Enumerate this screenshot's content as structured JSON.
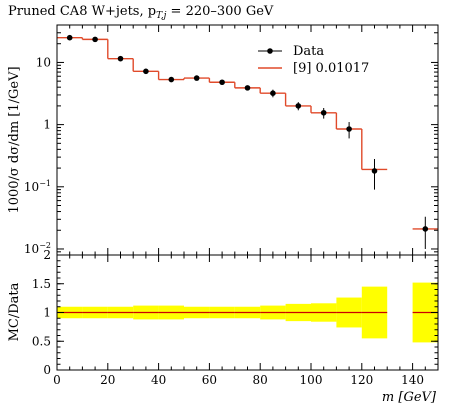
{
  "title": "Pruned CA8 W+jets, p",
  "title_sub": "T,j",
  "title_tail": " = 220–300 GeV",
  "colors": {
    "data": "#000000",
    "mc": "#e04a2a",
    "band": "#ffff00",
    "ratio_line": "#cc0000"
  },
  "chart_data": [
    {
      "type": "line",
      "role": "main",
      "ylabel": "1000/σ dσ/dm [1/GeV]",
      "yscale": "log",
      "ylim": [
        0.008,
        40
      ],
      "xlim": [
        0,
        150
      ],
      "y_ticks": [
        "10^{-2}",
        "10^{-1}",
        "1",
        "10"
      ],
      "bins": [
        [
          0,
          10
        ],
        [
          10,
          20
        ],
        [
          20,
          30
        ],
        [
          30,
          40
        ],
        [
          40,
          50
        ],
        [
          50,
          60
        ],
        [
          60,
          70
        ],
        [
          70,
          80
        ],
        [
          80,
          90
        ],
        [
          90,
          100
        ],
        [
          100,
          110
        ],
        [
          110,
          120
        ],
        [
          120,
          130
        ],
        [
          140,
          150
        ]
      ],
      "series": [
        {
          "name": "Data",
          "style": "points",
          "x": [
            5,
            15,
            25,
            35,
            45,
            55,
            65,
            75,
            85,
            95,
            105,
            115,
            125,
            145
          ],
          "y": [
            25,
            23.5,
            11.5,
            7.2,
            5.3,
            5.6,
            4.8,
            3.9,
            3.2,
            2.0,
            1.55,
            0.85,
            0.18,
            0.021
          ],
          "yerr_lo": [
            2,
            1.8,
            0.8,
            0.6,
            0.45,
            0.45,
            0.4,
            0.35,
            0.45,
            0.3,
            0.3,
            0.25,
            0.09,
            0.011
          ],
          "yerr_hi": [
            2,
            1.8,
            0.8,
            0.6,
            0.45,
            0.45,
            0.4,
            0.35,
            0.45,
            0.3,
            0.3,
            0.25,
            0.1,
            0.012
          ]
        },
        {
          "name": "[9] 0.01017",
          "style": "histogram",
          "y": [
            25,
            23.5,
            11.5,
            7.2,
            5.3,
            5.6,
            4.8,
            3.9,
            3.2,
            2.0,
            1.55,
            0.85,
            0.19,
            0.021
          ]
        }
      ],
      "legend": "top-right"
    },
    {
      "type": "line",
      "role": "ratio",
      "ylabel": "MC/Data",
      "ylim": [
        0,
        2
      ],
      "xlim": [
        0,
        150
      ],
      "y_ticks": [
        "0",
        "0.5",
        "1",
        "1.5",
        "2"
      ],
      "x_ticks": [
        "0",
        "20",
        "40",
        "60",
        "80",
        "100",
        "120",
        "140"
      ],
      "xlabel": "m [GeV]",
      "bins": [
        [
          0,
          10
        ],
        [
          10,
          20
        ],
        [
          20,
          30
        ],
        [
          30,
          40
        ],
        [
          40,
          50
        ],
        [
          50,
          60
        ],
        [
          60,
          70
        ],
        [
          70,
          80
        ],
        [
          80,
          90
        ],
        [
          90,
          100
        ],
        [
          100,
          110
        ],
        [
          110,
          120
        ],
        [
          120,
          130
        ],
        [
          140,
          150
        ]
      ],
      "band_lo": [
        0.9,
        0.9,
        0.9,
        0.88,
        0.88,
        0.9,
        0.9,
        0.9,
        0.88,
        0.85,
        0.84,
        0.74,
        0.55,
        0.48
      ],
      "band_hi": [
        1.1,
        1.1,
        1.1,
        1.12,
        1.12,
        1.1,
        1.1,
        1.1,
        1.12,
        1.15,
        1.16,
        1.26,
        1.45,
        1.52
      ],
      "ratio": [
        1,
        1,
        1,
        1,
        1,
        1,
        1,
        1,
        1,
        1,
        1,
        1,
        1,
        1
      ]
    }
  ]
}
